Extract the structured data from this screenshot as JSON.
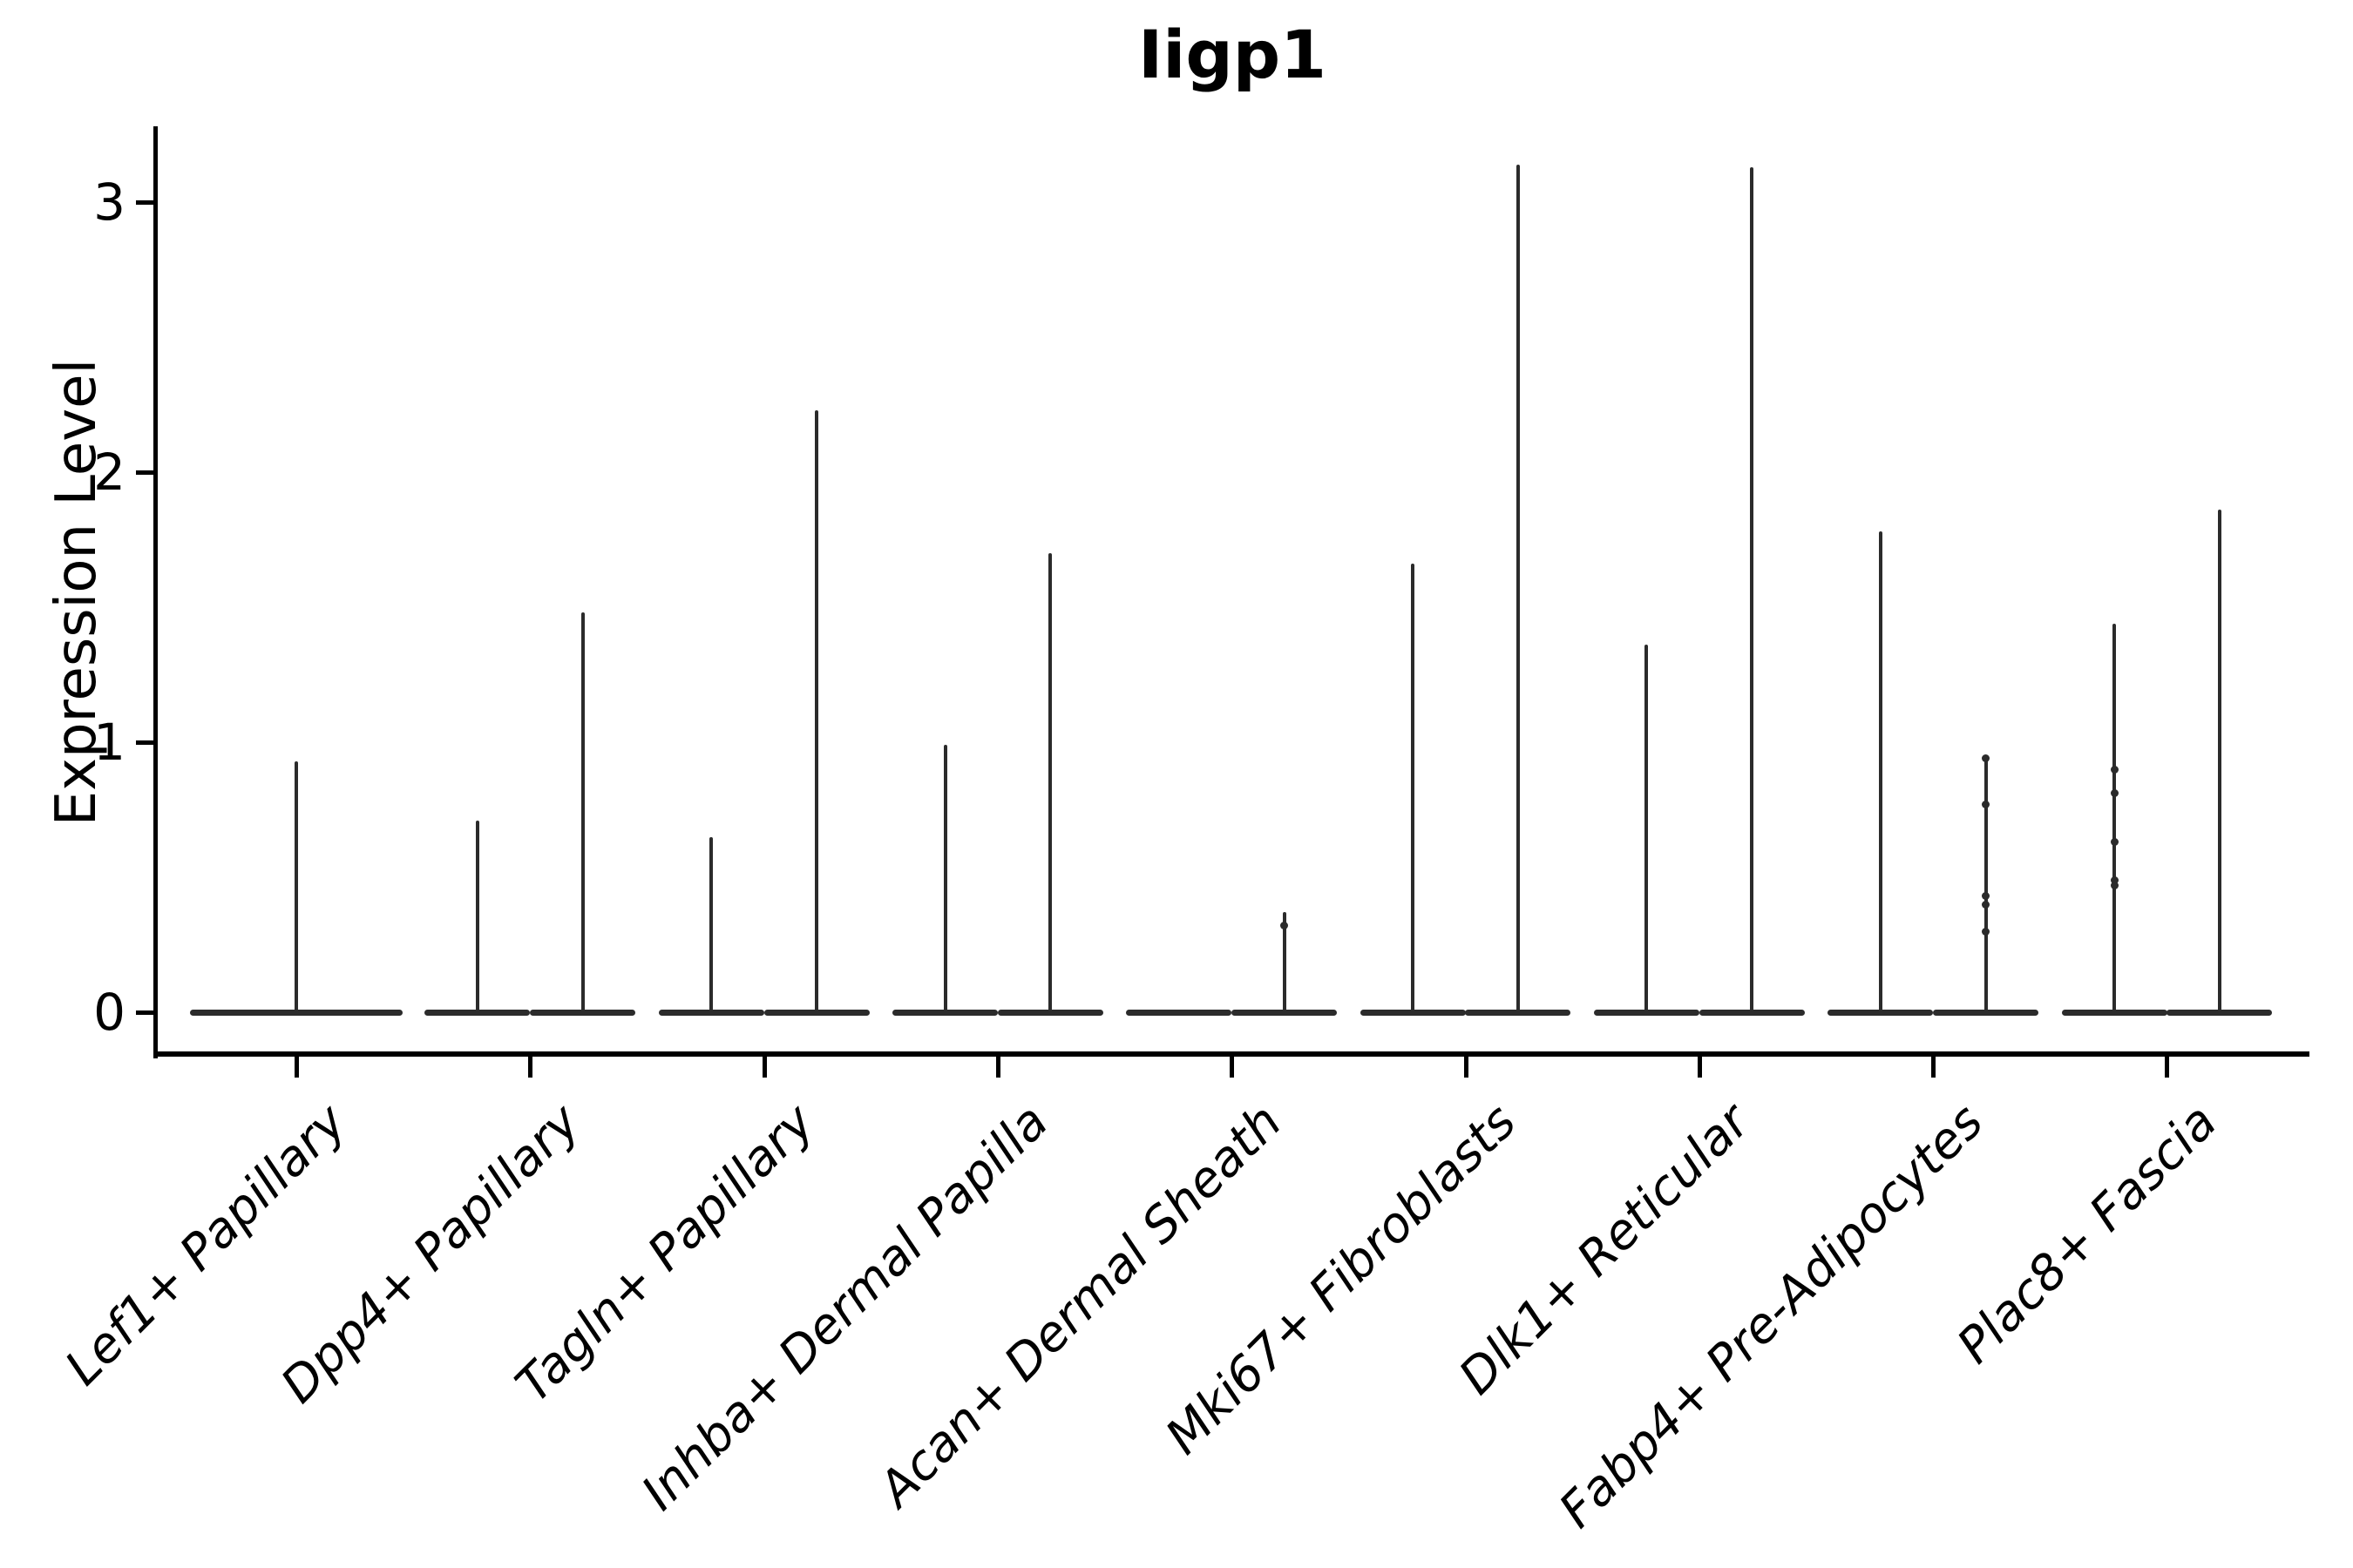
{
  "title": "Iigp1",
  "ylabel": "Expression Level",
  "colors": {
    "background": "#ffffff",
    "axis_ink": "#000000",
    "violin_ink": "#2b2b2b"
  },
  "chart_data": {
    "type": "violin",
    "title": "Iigp1",
    "xlabel": "",
    "ylabel": "Expression Level",
    "ylim": [
      0,
      3.3
    ],
    "yticks": [
      {
        "value": 0,
        "label": "0"
      },
      {
        "value": 1,
        "label": "1"
      },
      {
        "value": 2,
        "label": "2"
      },
      {
        "value": 3,
        "label": "3"
      }
    ],
    "grid": false,
    "legend_position": "none",
    "note": "Violins are flat at expression 0 with thin density spikes up to the max expressed value; small dots are individual expressing cells.",
    "categories": [
      {
        "label": "Lef1+ Papillary",
        "violins": [
          {
            "group": "single",
            "max_expression": 0.93,
            "points": []
          }
        ]
      },
      {
        "label": "Dpp4+ Papillary",
        "violins": [
          {
            "group": "left",
            "max_expression": 0.71,
            "points": []
          },
          {
            "group": "right",
            "max_expression": 1.48,
            "points": []
          }
        ]
      },
      {
        "label": "Tagln+ Papillary",
        "violins": [
          {
            "group": "left",
            "max_expression": 0.65,
            "points": []
          },
          {
            "group": "right",
            "max_expression": 2.23,
            "points": []
          }
        ]
      },
      {
        "label": "Inhba+ Dermal Papilla",
        "violins": [
          {
            "group": "left",
            "max_expression": 0.99,
            "points": []
          },
          {
            "group": "right",
            "max_expression": 1.7,
            "points": []
          }
        ]
      },
      {
        "label": "Acan+ Dermal Sheath",
        "violins": [
          {
            "group": "left",
            "max_expression": 0,
            "points": []
          },
          {
            "group": "right",
            "max_expression": 0.37,
            "points": [
              0.32
            ]
          }
        ]
      },
      {
        "label": "Mki67+ Fibroblasts",
        "violins": [
          {
            "group": "left",
            "max_expression": 1.66,
            "points": []
          },
          {
            "group": "right",
            "max_expression": 3.14,
            "points": []
          }
        ]
      },
      {
        "label": "Dlk1+ Reticular",
        "violins": [
          {
            "group": "left",
            "max_expression": 1.36,
            "points": []
          },
          {
            "group": "right",
            "max_expression": 3.13,
            "points": []
          }
        ]
      },
      {
        "label": "Fabp4+ Pre-Adipocytes",
        "violins": [
          {
            "group": "left",
            "max_expression": 1.78,
            "points": []
          },
          {
            "group": "right",
            "max_expression": 0.95,
            "points": [
              0.94,
              0.77,
              0.43,
              0.4,
              0.3
            ]
          }
        ]
      },
      {
        "label": "Plac8+ Fascia",
        "violins": [
          {
            "group": "left",
            "max_expression": 1.44,
            "points": [
              0.9,
              0.81,
              0.63,
              0.49,
              0.47
            ]
          },
          {
            "group": "right",
            "max_expression": 1.86,
            "points": []
          }
        ]
      }
    ]
  }
}
